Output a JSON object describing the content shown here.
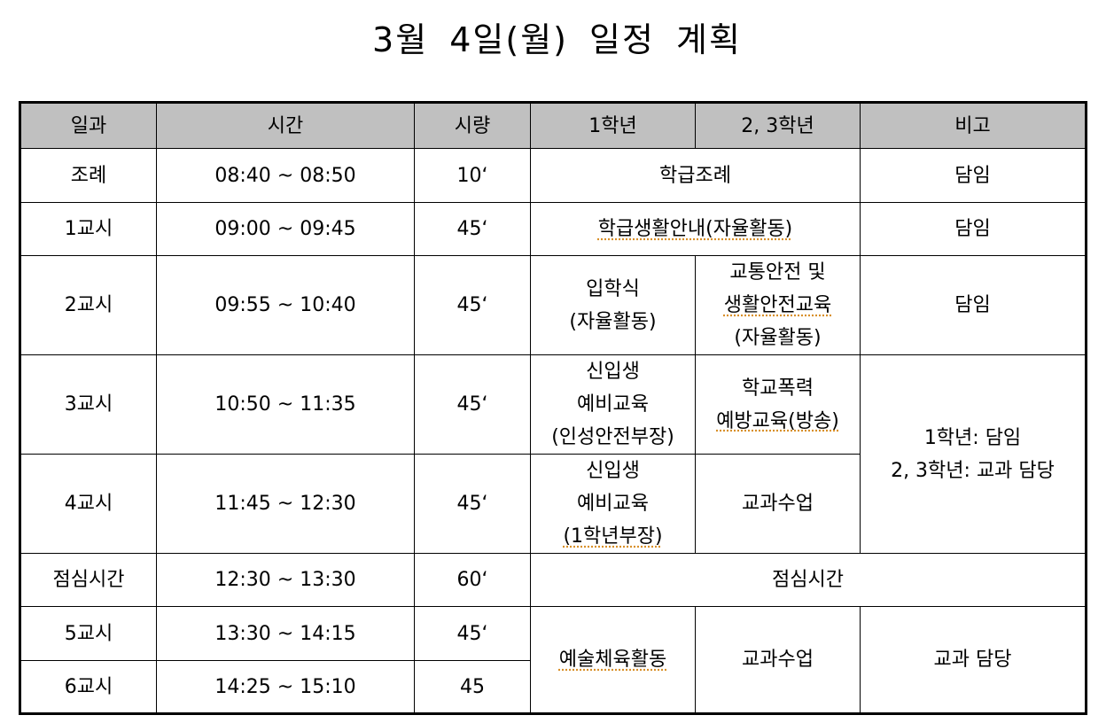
{
  "title": "3월 4일(월) 일정 계획",
  "headers": [
    "일과",
    "시간",
    "시량",
    "1학년",
    "2, 3학년",
    "비고"
  ],
  "rows": {
    "r0": {
      "period": "조례",
      "time": "08:40 ~ 08:50",
      "minutes": "10‘",
      "merged": "학급조례",
      "note": "담임"
    },
    "r1": {
      "period": "1교시",
      "time": "09:00 ~ 09:45",
      "minutes": "45‘",
      "merged": "학급생활안내(자율활동)",
      "note": "담임"
    },
    "r2": {
      "period": "2교시",
      "time": "09:55 ~ 10:40",
      "minutes": "45‘",
      "grade1": [
        "입학식",
        "(자율활동)"
      ],
      "grade23": [
        "교통안전 및",
        "생활안전교육",
        "(자율활동)"
      ],
      "note": "담임"
    },
    "r3": {
      "period": "3교시",
      "time": "10:50 ~ 11:35",
      "minutes": "45‘",
      "grade1": [
        "신입생",
        "예비교육",
        "(인성안전부장)"
      ],
      "grade23": [
        "학교폭력",
        "예방교육(방송)"
      ],
      "note": [
        "1학년: 담임",
        "2, 3학년: 교과 담당"
      ]
    },
    "r4": {
      "period": "4교시",
      "time": "11:45 ~ 12:30",
      "minutes": "45‘",
      "grade1": [
        "신입생",
        "예비교육",
        "(1학년부장)"
      ],
      "grade23": "교과수업"
    },
    "r5": {
      "period": "점심시간",
      "time": "12:30 ~ 13:30",
      "minutes": "60‘",
      "merged": "점심시간"
    },
    "r6": {
      "period": "5교시",
      "time": "13:30 ~ 14:15",
      "minutes": "45‘",
      "grade1": "예술체육활동",
      "grade23": "교과수업",
      "note": "교과 담당"
    },
    "r7": {
      "period": "6교시",
      "time": "14:25 ~ 15:10",
      "minutes": "45"
    }
  }
}
